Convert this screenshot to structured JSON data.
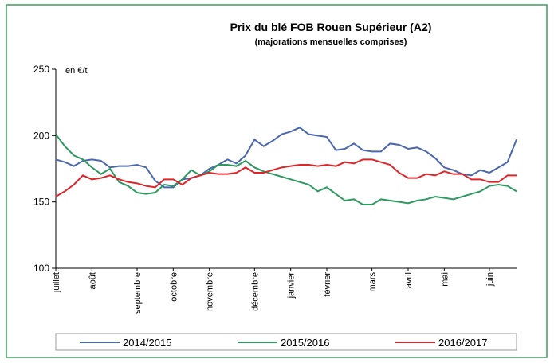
{
  "chart_data": {
    "type": "line",
    "title": "Prix du blé FOB Rouen Supérieur (A2)",
    "subtitle": "(majorations mensuelles comprises)",
    "unit_label": "en €/t",
    "categories": [
      "juillet",
      null,
      null,
      null,
      "août",
      null,
      null,
      null,
      null,
      "septembre",
      null,
      null,
      null,
      "octobre",
      null,
      null,
      null,
      "novembre",
      null,
      null,
      null,
      null,
      "décembre",
      null,
      null,
      null,
      "janvier",
      null,
      null,
      null,
      "février",
      null,
      null,
      null,
      null,
      "mars",
      null,
      null,
      null,
      "avril",
      null,
      null,
      null,
      "mai",
      null,
      null,
      null,
      null,
      "juin",
      null,
      null,
      null
    ],
    "series": [
      {
        "name": "2014/2015",
        "color": "#4a67b0",
        "values": [
          182,
          180,
          177,
          181,
          182,
          181,
          176,
          177,
          177,
          178,
          176,
          166,
          161,
          161,
          167,
          168,
          170,
          175,
          178,
          182,
          179,
          185,
          197,
          192,
          196,
          201,
          203,
          206,
          201,
          200,
          199,
          189,
          190,
          194,
          189,
          188,
          188,
          194,
          193,
          190,
          191,
          188,
          183,
          176,
          174,
          171,
          170,
          174,
          172,
          176,
          180,
          197
        ]
      },
      {
        "name": "2015/2016",
        "color": "#2e9a62",
        "values": [
          201,
          192,
          185,
          182,
          176,
          171,
          175,
          165,
          162,
          157,
          156,
          157,
          163,
          162,
          167,
          174,
          170,
          173,
          178,
          178,
          177,
          181,
          176,
          173,
          171,
          169,
          167,
          165,
          163,
          158,
          161,
          156,
          151,
          152,
          148,
          148,
          152,
          151,
          150,
          149,
          151,
          152,
          154,
          153,
          152,
          154,
          156,
          158,
          162,
          163,
          162,
          158
        ]
      },
      {
        "name": "2016/2017",
        "color": "#e0252a",
        "values": [
          154,
          158,
          163,
          170,
          167,
          168,
          170,
          167,
          165,
          164,
          162,
          161,
          167,
          167,
          163,
          168,
          170,
          172,
          171,
          171,
          172,
          176,
          172,
          172,
          174,
          176,
          177,
          178,
          178,
          177,
          178,
          177,
          180,
          179,
          182,
          182,
          180,
          178,
          172,
          168,
          168,
          171,
          170,
          173,
          171,
          171,
          167,
          167,
          165,
          165,
          170,
          170
        ]
      }
    ],
    "ylim": [
      100,
      250
    ],
    "yticks": [
      100,
      150,
      200,
      250
    ],
    "grid": false,
    "legend": "bottom"
  }
}
